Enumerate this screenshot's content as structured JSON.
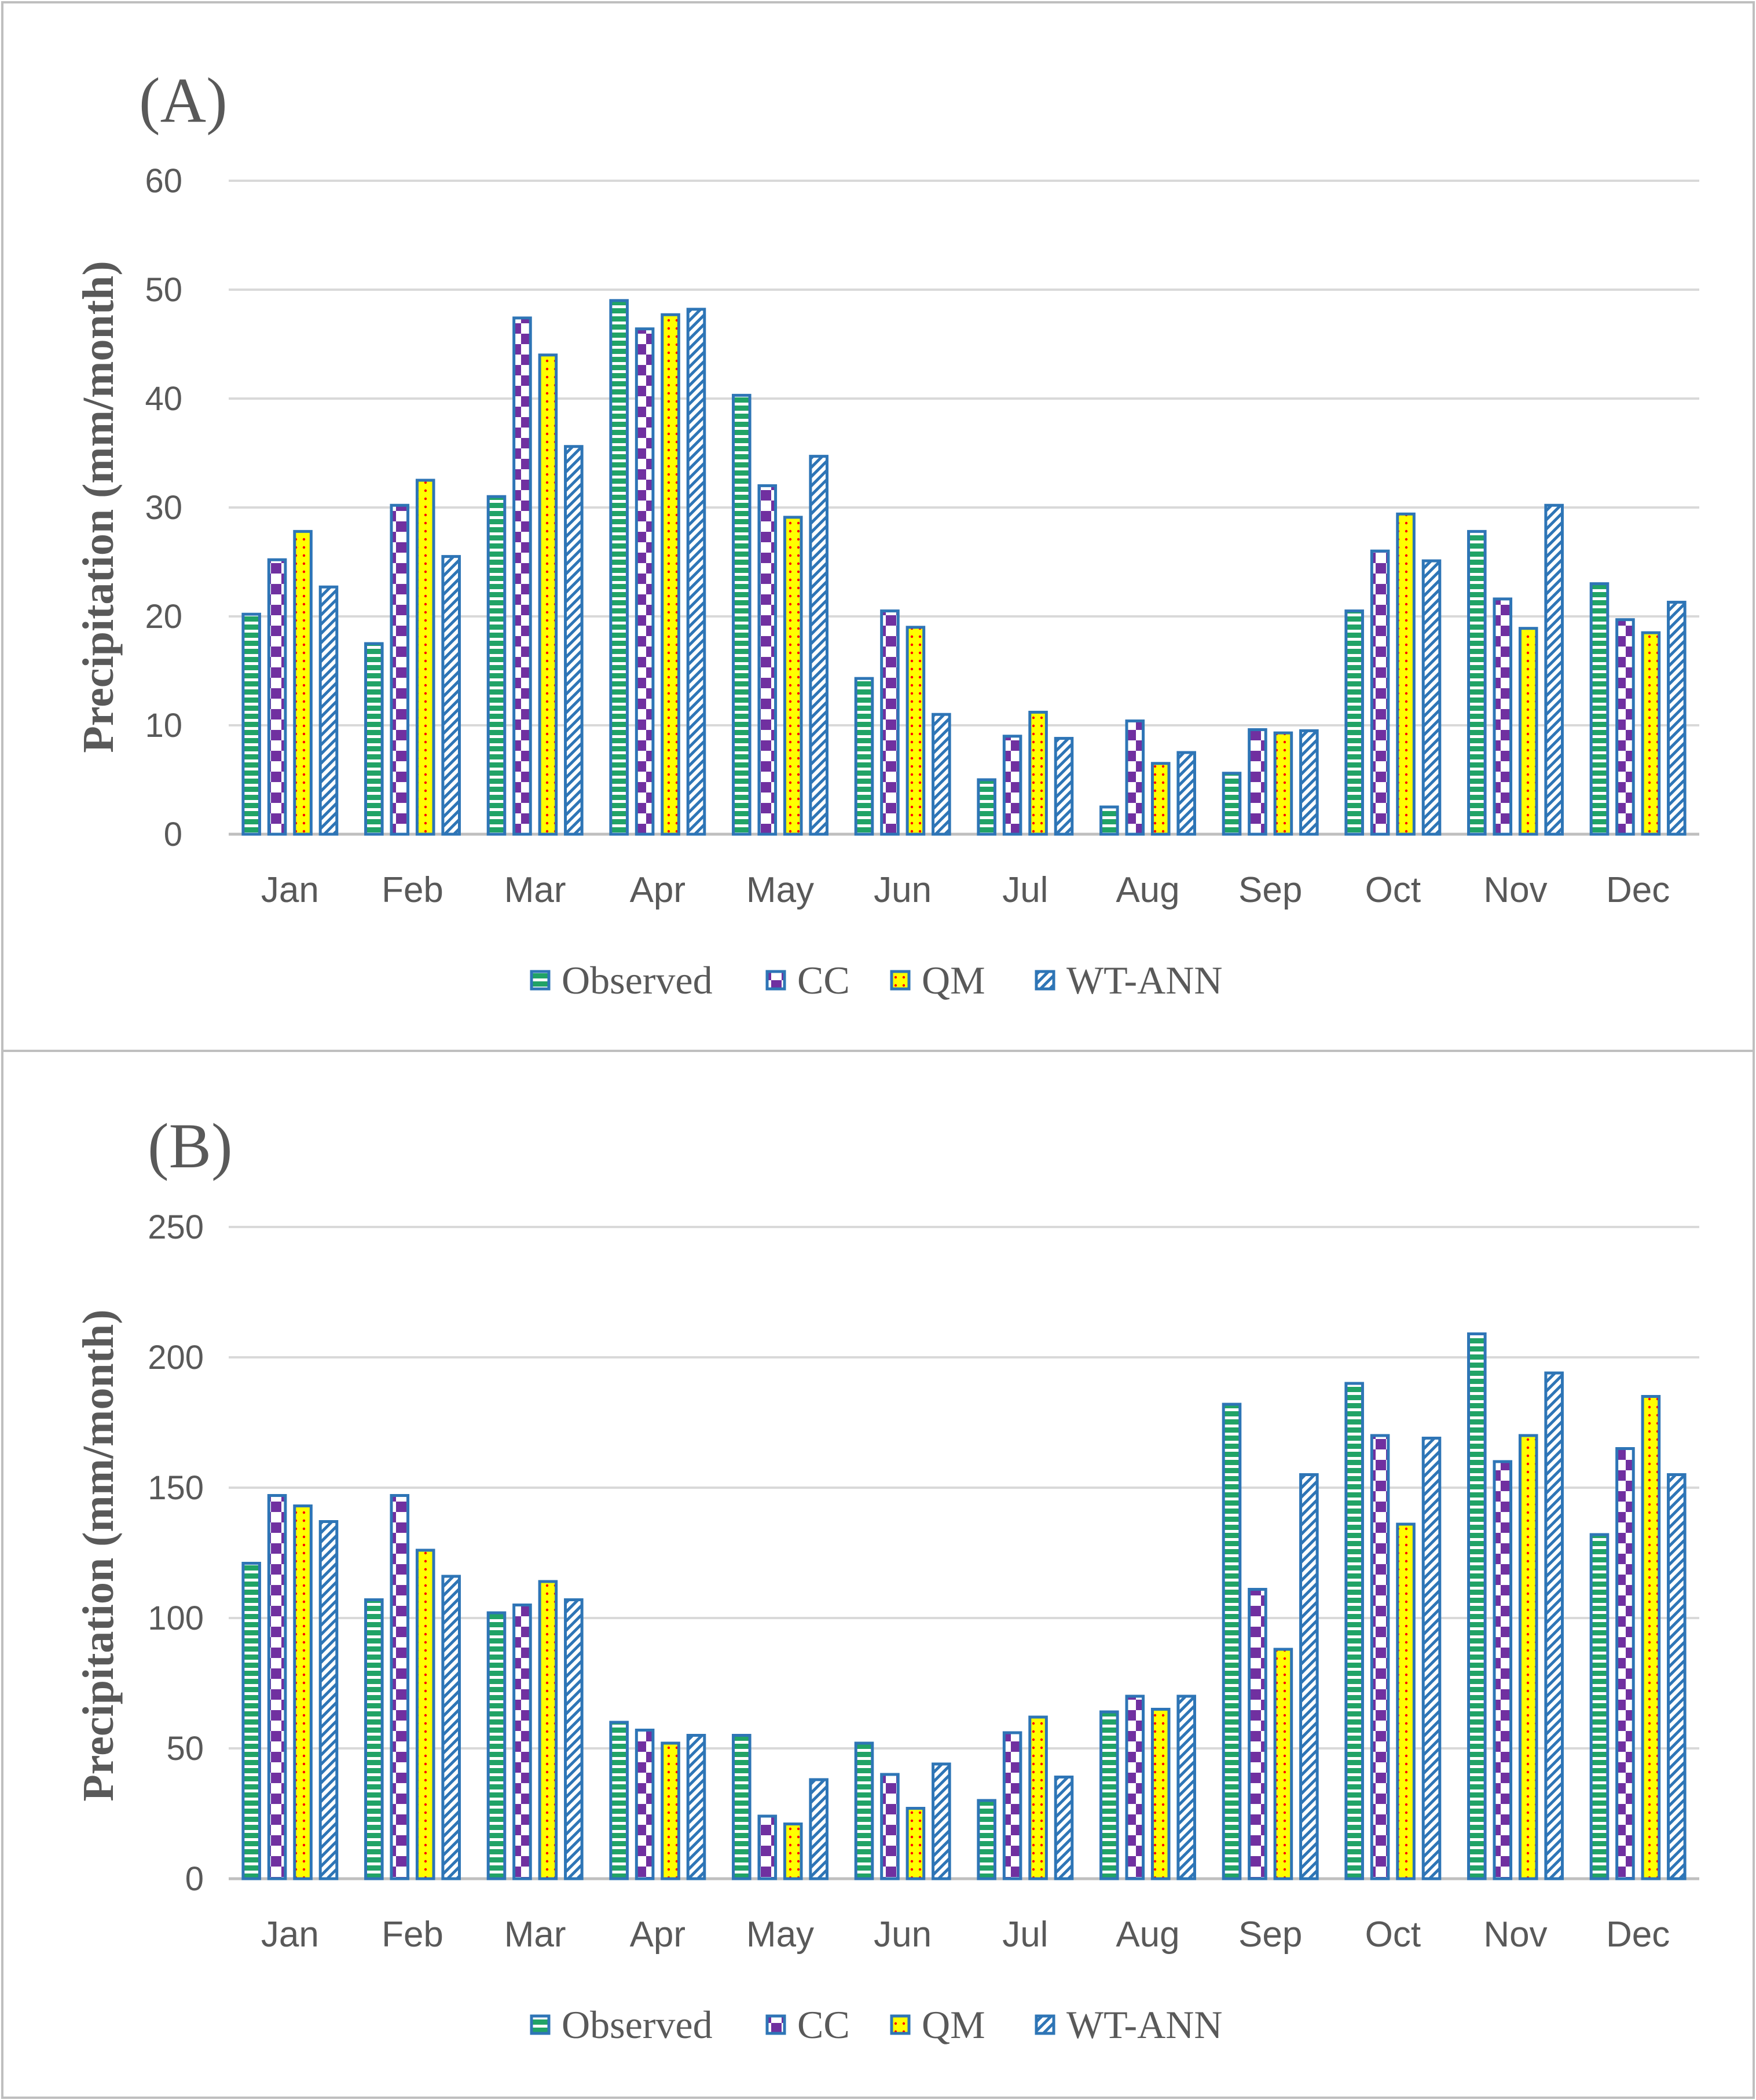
{
  "legend": {
    "observed": "Observed",
    "cc": "CC",
    "qm": "QM",
    "wtann": "WT-ANN"
  },
  "colors": {
    "outline": "#2E75B6",
    "observed_fill": "#21A366",
    "cc_fill": "#7030A0",
    "qm_fill": "#FFFF00",
    "qm_dot": "#FF0000",
    "wtann_fill": "#2E75B6",
    "grid": "#D9D9D9",
    "text": "#595959"
  },
  "chart_data": [
    {
      "type": "bar",
      "panel_label": "(A)",
      "ylabel": "Precipitation (mm/month)",
      "xlabel": "",
      "ylim": [
        0,
        60
      ],
      "yticks": [
        0,
        10,
        20,
        30,
        40,
        50,
        60
      ],
      "grid": true,
      "legend_position": "bottom",
      "categories": [
        "Jan",
        "Feb",
        "Mar",
        "Apr",
        "May",
        "Jun",
        "Jul",
        "Aug",
        "Sep",
        "Oct",
        "Nov",
        "Dec"
      ],
      "series": [
        {
          "name": "Observed",
          "values": [
            20.2,
            17.5,
            31.0,
            49.0,
            40.3,
            14.3,
            5.0,
            2.5,
            5.6,
            20.5,
            27.8,
            23.0
          ]
        },
        {
          "name": "CC",
          "values": [
            25.2,
            30.2,
            47.4,
            46.4,
            32.0,
            20.5,
            9.0,
            10.4,
            9.6,
            26.0,
            21.6,
            19.7
          ]
        },
        {
          "name": "QM",
          "values": [
            27.8,
            32.5,
            44.0,
            47.7,
            29.1,
            19.0,
            11.2,
            6.5,
            9.3,
            29.4,
            18.9,
            18.5
          ]
        },
        {
          "name": "WT-ANN",
          "values": [
            22.7,
            25.5,
            35.6,
            48.2,
            34.7,
            11.0,
            8.8,
            7.5,
            9.5,
            25.1,
            30.2,
            21.3
          ]
        }
      ]
    },
    {
      "type": "bar",
      "panel_label": "(B)",
      "ylabel": "Precipitation (mm/month)",
      "xlabel": "",
      "ylim": [
        0,
        250
      ],
      "yticks": [
        0,
        50,
        100,
        150,
        200,
        250
      ],
      "grid": true,
      "legend_position": "bottom",
      "categories": [
        "Jan",
        "Feb",
        "Mar",
        "Apr",
        "May",
        "Jun",
        "Jul",
        "Aug",
        "Sep",
        "Oct",
        "Nov",
        "Dec"
      ],
      "series": [
        {
          "name": "Observed",
          "values": [
            121,
            107,
            102,
            60,
            55,
            52,
            30,
            64,
            182,
            190,
            209,
            132
          ]
        },
        {
          "name": "CC",
          "values": [
            147,
            147,
            105,
            57,
            24,
            40,
            56,
            70,
            111,
            170,
            160,
            165
          ]
        },
        {
          "name": "QM",
          "values": [
            143,
            126,
            114,
            52,
            21,
            27,
            62,
            65,
            88,
            136,
            170,
            185
          ]
        },
        {
          "name": "WT-ANN",
          "values": [
            137,
            116,
            107,
            55,
            38,
            44,
            39,
            70,
            155,
            169,
            194,
            155
          ]
        }
      ]
    }
  ]
}
